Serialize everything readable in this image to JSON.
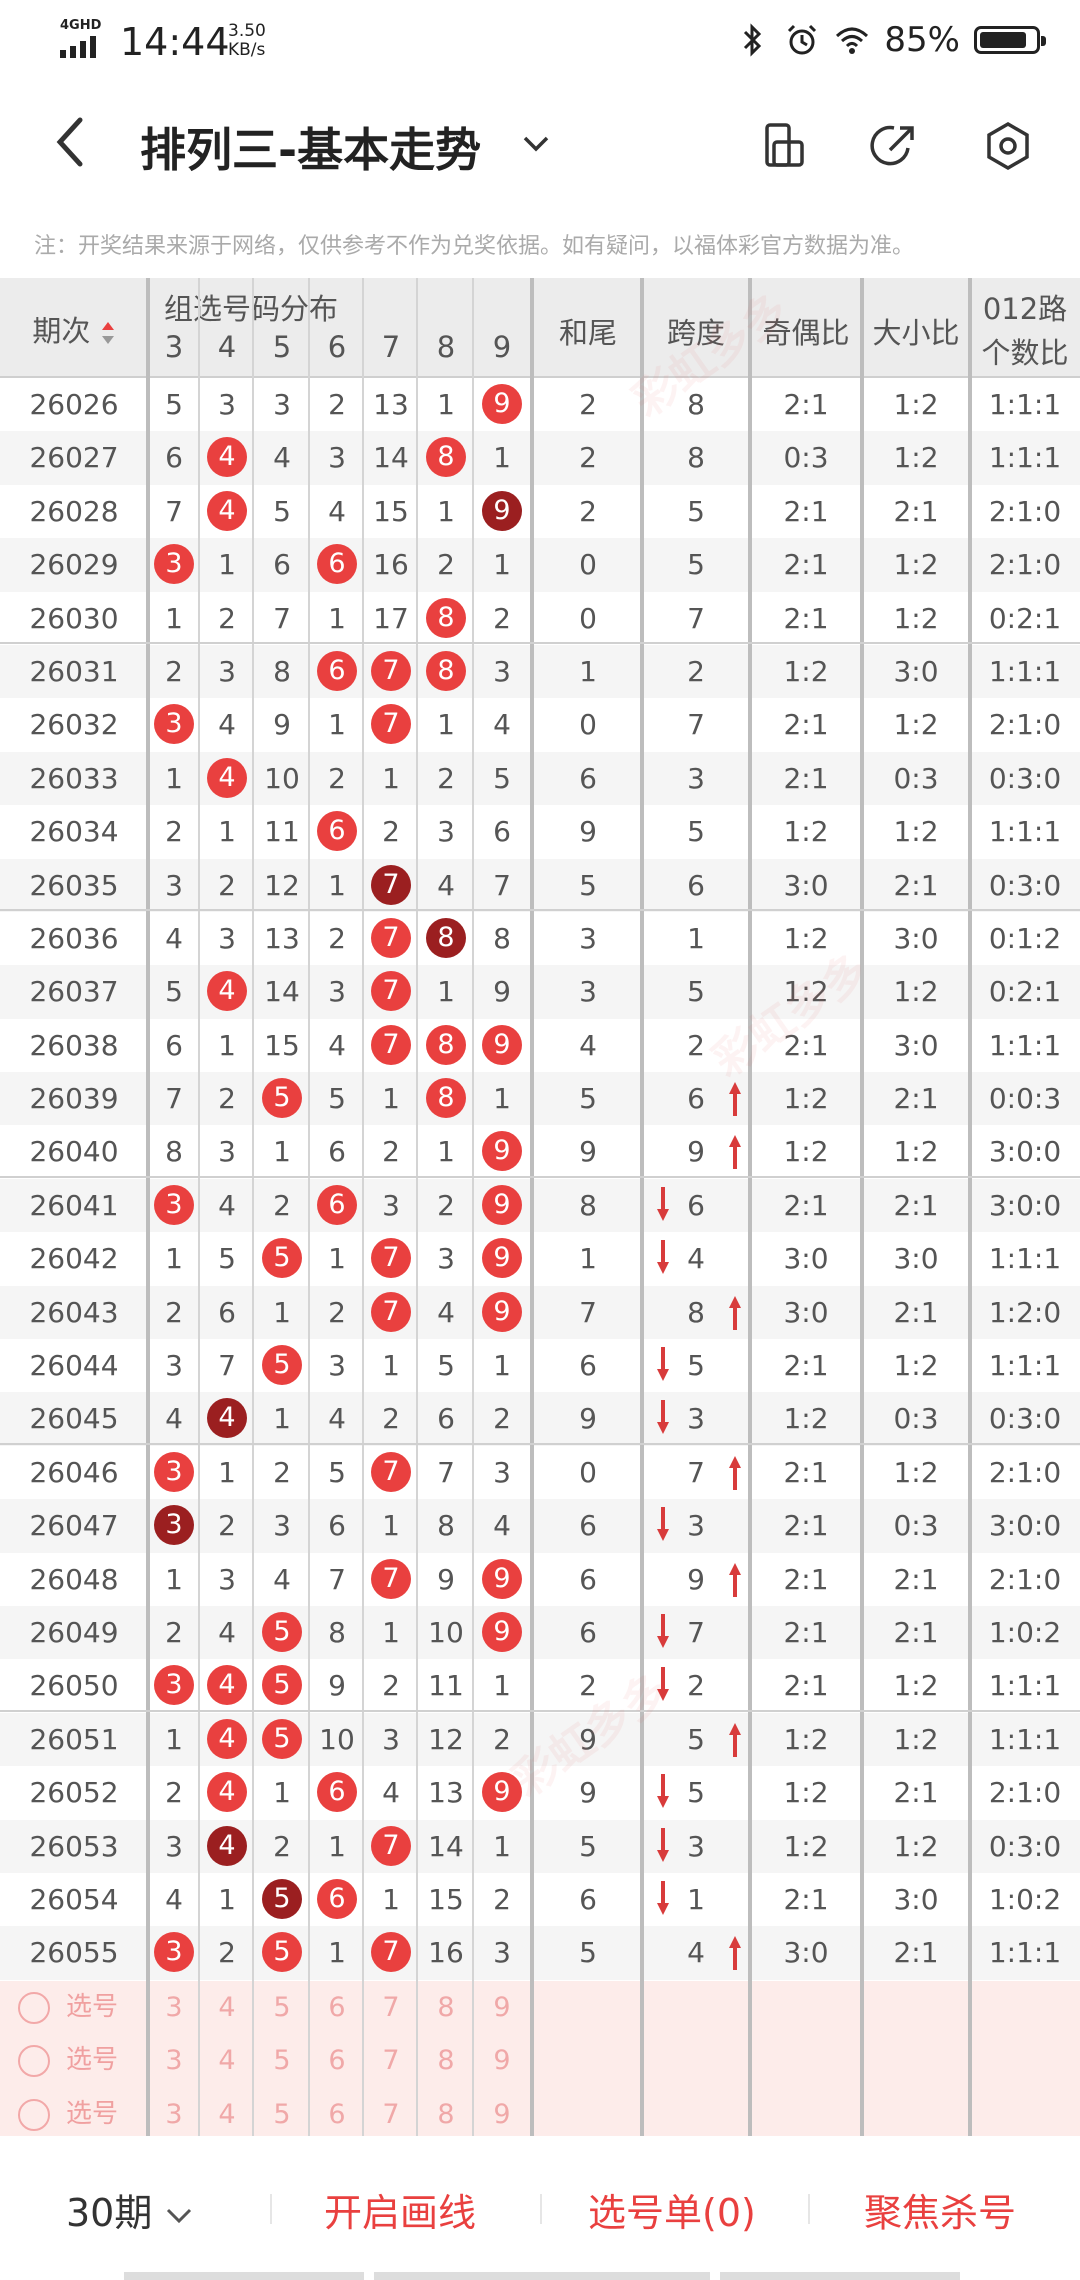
{
  "status_bar": {
    "network": "4GHD",
    "time": "14:44",
    "speed_value": "3.50",
    "speed_unit": "KB/s",
    "battery": "85%",
    "battery_level": 0.85
  },
  "header": {
    "title": "排列三-基本走势",
    "back_icon": "back-arrow-icon",
    "icons": [
      "phone-rotate-icon",
      "share-icon",
      "settings-icon"
    ]
  },
  "notice": "注：开奖结果来源于网络，仅供参考不作为兑奖依据。如有疑问，以福体彩官方数据为准。",
  "table": {
    "headers": {
      "period": "期次",
      "distribution": "组选号码分布",
      "digits": [
        "3",
        "4",
        "5",
        "6",
        "7",
        "8",
        "9"
      ],
      "tail": "和尾",
      "span": "跨度",
      "odd_even": "奇偶比",
      "big_small": "大小比",
      "route_line1": "012路",
      "route_line2": "个数比"
    },
    "rows": [
      {
        "issue": "26026",
        "d": [
          "5",
          "3",
          "3",
          "2",
          "13",
          "1",
          "9"
        ],
        "hit": [
          0,
          0,
          0,
          0,
          0,
          0,
          1
        ],
        "tail": "2",
        "span": "8",
        "oe": "2:1",
        "bs": "1:2",
        "r": "1:1:1",
        "arrow": ""
      },
      {
        "issue": "26027",
        "d": [
          "6",
          "4",
          "4",
          "3",
          "14",
          "8",
          "1"
        ],
        "hit": [
          0,
          1,
          0,
          0,
          0,
          1,
          0
        ],
        "tail": "2",
        "span": "8",
        "oe": "0:3",
        "bs": "1:2",
        "r": "1:1:1",
        "arrow": ""
      },
      {
        "issue": "26028",
        "d": [
          "7",
          "4",
          "5",
          "4",
          "15",
          "1",
          "9"
        ],
        "hit": [
          0,
          1,
          0,
          0,
          0,
          0,
          2
        ],
        "tail": "2",
        "span": "5",
        "oe": "2:1",
        "bs": "2:1",
        "r": "2:1:0",
        "arrow": ""
      },
      {
        "issue": "26029",
        "d": [
          "3",
          "1",
          "6",
          "6",
          "16",
          "2",
          "1"
        ],
        "hit": [
          1,
          0,
          0,
          1,
          0,
          0,
          0
        ],
        "tail": "0",
        "span": "5",
        "oe": "2:1",
        "bs": "1:2",
        "r": "2:1:0",
        "arrow": ""
      },
      {
        "issue": "26030",
        "d": [
          "1",
          "2",
          "7",
          "1",
          "17",
          "8",
          "2"
        ],
        "hit": [
          0,
          0,
          0,
          0,
          0,
          1,
          0
        ],
        "tail": "0",
        "span": "7",
        "oe": "2:1",
        "bs": "1:2",
        "r": "0:2:1",
        "arrow": ""
      },
      {
        "issue": "26031",
        "d": [
          "2",
          "3",
          "8",
          "6",
          "7",
          "8",
          "3"
        ],
        "hit": [
          0,
          0,
          0,
          1,
          1,
          1,
          0
        ],
        "tail": "1",
        "span": "2",
        "oe": "1:2",
        "bs": "3:0",
        "r": "1:1:1",
        "arrow": ""
      },
      {
        "issue": "26032",
        "d": [
          "3",
          "4",
          "9",
          "1",
          "7",
          "1",
          "4"
        ],
        "hit": [
          1,
          0,
          0,
          0,
          1,
          0,
          0
        ],
        "tail": "0",
        "span": "7",
        "oe": "2:1",
        "bs": "1:2",
        "r": "2:1:0",
        "arrow": ""
      },
      {
        "issue": "26033",
        "d": [
          "1",
          "4",
          "10",
          "2",
          "1",
          "2",
          "5"
        ],
        "hit": [
          0,
          1,
          0,
          0,
          0,
          0,
          0
        ],
        "tail": "6",
        "span": "3",
        "oe": "2:1",
        "bs": "0:3",
        "r": "0:3:0",
        "arrow": ""
      },
      {
        "issue": "26034",
        "d": [
          "2",
          "1",
          "11",
          "6",
          "2",
          "3",
          "6"
        ],
        "hit": [
          0,
          0,
          0,
          1,
          0,
          0,
          0
        ],
        "tail": "9",
        "span": "5",
        "oe": "1:2",
        "bs": "1:2",
        "r": "1:1:1",
        "arrow": ""
      },
      {
        "issue": "26035",
        "d": [
          "3",
          "2",
          "12",
          "1",
          "7",
          "4",
          "7"
        ],
        "hit": [
          0,
          0,
          0,
          0,
          2,
          0,
          0
        ],
        "tail": "5",
        "span": "6",
        "oe": "3:0",
        "bs": "2:1",
        "r": "0:3:0",
        "arrow": ""
      },
      {
        "issue": "26036",
        "d": [
          "4",
          "3",
          "13",
          "2",
          "7",
          "8",
          "8"
        ],
        "hit": [
          0,
          0,
          0,
          0,
          1,
          2,
          0
        ],
        "tail": "3",
        "span": "1",
        "oe": "1:2",
        "bs": "3:0",
        "r": "0:1:2",
        "arrow": ""
      },
      {
        "issue": "26037",
        "d": [
          "5",
          "4",
          "14",
          "3",
          "7",
          "1",
          "9"
        ],
        "hit": [
          0,
          1,
          0,
          0,
          1,
          0,
          0
        ],
        "tail": "3",
        "span": "5",
        "oe": "1:2",
        "bs": "1:2",
        "r": "0:2:1",
        "arrow": ""
      },
      {
        "issue": "26038",
        "d": [
          "6",
          "1",
          "15",
          "4",
          "7",
          "8",
          "9"
        ],
        "hit": [
          0,
          0,
          0,
          0,
          1,
          1,
          1
        ],
        "tail": "4",
        "span": "2",
        "oe": "2:1",
        "bs": "3:0",
        "r": "1:1:1",
        "arrow": ""
      },
      {
        "issue": "26039",
        "d": [
          "7",
          "2",
          "5",
          "5",
          "1",
          "8",
          "1"
        ],
        "hit": [
          0,
          0,
          1,
          0,
          0,
          1,
          0
        ],
        "tail": "5",
        "span": "6",
        "oe": "1:2",
        "bs": "2:1",
        "r": "0:0:3",
        "arrow": "up"
      },
      {
        "issue": "26040",
        "d": [
          "8",
          "3",
          "1",
          "6",
          "2",
          "1",
          "9"
        ],
        "hit": [
          0,
          0,
          0,
          0,
          0,
          0,
          1
        ],
        "tail": "9",
        "span": "9",
        "oe": "1:2",
        "bs": "1:2",
        "r": "3:0:0",
        "arrow": "up"
      },
      {
        "issue": "26041",
        "d": [
          "3",
          "4",
          "2",
          "6",
          "3",
          "2",
          "9"
        ],
        "hit": [
          1,
          0,
          0,
          1,
          0,
          0,
          1
        ],
        "tail": "8",
        "span": "6",
        "oe": "2:1",
        "bs": "2:1",
        "r": "3:0:0",
        "arrow": "down"
      },
      {
        "issue": "26042",
        "d": [
          "1",
          "5",
          "5",
          "1",
          "7",
          "3",
          "9"
        ],
        "hit": [
          0,
          0,
          1,
          0,
          1,
          0,
          1
        ],
        "tail": "1",
        "span": "4",
        "oe": "3:0",
        "bs": "3:0",
        "r": "1:1:1",
        "arrow": "down"
      },
      {
        "issue": "26043",
        "d": [
          "2",
          "6",
          "1",
          "2",
          "7",
          "4",
          "9"
        ],
        "hit": [
          0,
          0,
          0,
          0,
          1,
          0,
          1
        ],
        "tail": "7",
        "span": "8",
        "oe": "3:0",
        "bs": "2:1",
        "r": "1:2:0",
        "arrow": "up"
      },
      {
        "issue": "26044",
        "d": [
          "3",
          "7",
          "5",
          "3",
          "1",
          "5",
          "1"
        ],
        "hit": [
          0,
          0,
          1,
          0,
          0,
          0,
          0
        ],
        "tail": "6",
        "span": "5",
        "oe": "2:1",
        "bs": "1:2",
        "r": "1:1:1",
        "arrow": "down"
      },
      {
        "issue": "26045",
        "d": [
          "4",
          "4",
          "1",
          "4",
          "2",
          "6",
          "2"
        ],
        "hit": [
          0,
          2,
          0,
          0,
          0,
          0,
          0
        ],
        "tail": "9",
        "span": "3",
        "oe": "1:2",
        "bs": "0:3",
        "r": "0:3:0",
        "arrow": "down"
      },
      {
        "issue": "26046",
        "d": [
          "3",
          "1",
          "2",
          "5",
          "7",
          "7",
          "3"
        ],
        "hit": [
          1,
          0,
          0,
          0,
          1,
          0,
          0
        ],
        "tail": "0",
        "span": "7",
        "oe": "2:1",
        "bs": "1:2",
        "r": "2:1:0",
        "arrow": "up"
      },
      {
        "issue": "26047",
        "d": [
          "3",
          "2",
          "3",
          "6",
          "1",
          "8",
          "4"
        ],
        "hit": [
          2,
          0,
          0,
          0,
          0,
          0,
          0
        ],
        "tail": "6",
        "span": "3",
        "oe": "2:1",
        "bs": "0:3",
        "r": "3:0:0",
        "arrow": "down"
      },
      {
        "issue": "26048",
        "d": [
          "1",
          "3",
          "4",
          "7",
          "7",
          "9",
          "9"
        ],
        "hit": [
          0,
          0,
          0,
          0,
          1,
          0,
          1
        ],
        "tail": "6",
        "span": "9",
        "oe": "2:1",
        "bs": "2:1",
        "r": "2:1:0",
        "arrow": "up"
      },
      {
        "issue": "26049",
        "d": [
          "2",
          "4",
          "5",
          "8",
          "1",
          "10",
          "9"
        ],
        "hit": [
          0,
          0,
          1,
          0,
          0,
          0,
          1
        ],
        "tail": "6",
        "span": "7",
        "oe": "2:1",
        "bs": "2:1",
        "r": "1:0:2",
        "arrow": "down"
      },
      {
        "issue": "26050",
        "d": [
          "3",
          "4",
          "5",
          "9",
          "2",
          "11",
          "1"
        ],
        "hit": [
          1,
          1,
          1,
          0,
          0,
          0,
          0
        ],
        "tail": "2",
        "span": "2",
        "oe": "2:1",
        "bs": "1:2",
        "r": "1:1:1",
        "arrow": "down"
      },
      {
        "issue": "26051",
        "d": [
          "1",
          "4",
          "5",
          "10",
          "3",
          "12",
          "2"
        ],
        "hit": [
          0,
          1,
          1,
          0,
          0,
          0,
          0
        ],
        "tail": "9",
        "span": "5",
        "oe": "1:2",
        "bs": "1:2",
        "r": "1:1:1",
        "arrow": "up"
      },
      {
        "issue": "26052",
        "d": [
          "2",
          "4",
          "1",
          "6",
          "4",
          "13",
          "9"
        ],
        "hit": [
          0,
          1,
          0,
          1,
          0,
          0,
          1
        ],
        "tail": "9",
        "span": "5",
        "oe": "1:2",
        "bs": "2:1",
        "r": "2:1:0",
        "arrow": "down"
      },
      {
        "issue": "26053",
        "d": [
          "3",
          "4",
          "2",
          "1",
          "7",
          "14",
          "1"
        ],
        "hit": [
          0,
          2,
          0,
          0,
          1,
          0,
          0
        ],
        "tail": "5",
        "span": "3",
        "oe": "1:2",
        "bs": "1:2",
        "r": "0:3:0",
        "arrow": "down"
      },
      {
        "issue": "26054",
        "d": [
          "4",
          "1",
          "5",
          "6",
          "1",
          "15",
          "2"
        ],
        "hit": [
          0,
          0,
          2,
          1,
          0,
          0,
          0
        ],
        "tail": "6",
        "span": "1",
        "oe": "2:1",
        "bs": "3:0",
        "r": "1:0:2",
        "arrow": "down"
      },
      {
        "issue": "26055",
        "d": [
          "3",
          "2",
          "5",
          "1",
          "7",
          "16",
          "3"
        ],
        "hit": [
          1,
          0,
          1,
          0,
          1,
          0,
          0
        ],
        "tail": "5",
        "span": "4",
        "oe": "3:0",
        "bs": "2:1",
        "r": "1:1:1",
        "arrow": "up"
      }
    ],
    "select_rows": [
      {
        "label": "选号",
        "digits": [
          "3",
          "4",
          "5",
          "6",
          "7",
          "8",
          "9"
        ]
      },
      {
        "label": "选号",
        "digits": [
          "3",
          "4",
          "5",
          "6",
          "7",
          "8",
          "9"
        ]
      },
      {
        "label": "选号",
        "digits": [
          "3",
          "4",
          "5",
          "6",
          "7",
          "8",
          "9"
        ]
      }
    ]
  },
  "bottom_bar": {
    "periods": "30期",
    "draw_lines": "开启画线",
    "pick_list": "选号单(0)",
    "focus_kill": "聚焦杀号"
  },
  "colors": {
    "accent": "#e9403f",
    "dark_ball": "#9b1f20",
    "header_bg": "#ececec",
    "select_bg": "#fdecea"
  }
}
